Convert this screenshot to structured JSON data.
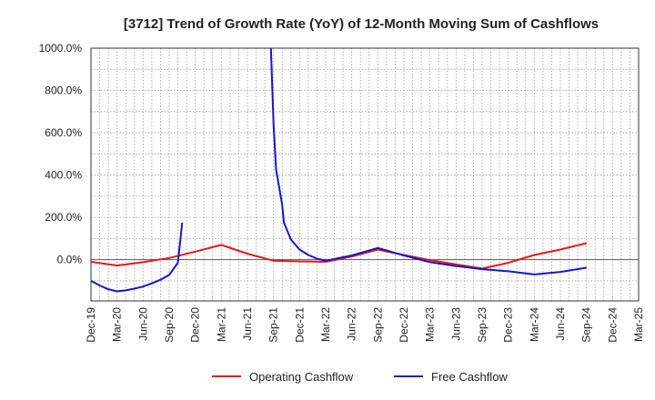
{
  "chart_data": {
    "type": "line",
    "title": "[3712]  Trend of Growth Rate (YoY) of 12-Month Moving Sum of Cashflows",
    "xlabel": "",
    "ylabel": "",
    "x_categories": [
      "Dec-19",
      "Mar-20",
      "Jun-20",
      "Sep-20",
      "Dec-20",
      "Mar-21",
      "Jun-21",
      "Sep-21",
      "Dec-21",
      "Mar-22",
      "Jun-22",
      "Sep-22",
      "Dec-22",
      "Mar-23",
      "Jun-23",
      "Sep-23",
      "Dec-23",
      "Mar-24",
      "Jun-24",
      "Sep-24",
      "Dec-24",
      "Mar-25"
    ],
    "y_ticks": [
      0,
      200,
      400,
      600,
      800,
      1000
    ],
    "y_tick_labels": [
      "0.0%",
      "200.0%",
      "400.0%",
      "600.0%",
      "800.0%",
      "1000.0%"
    ],
    "ylim": [
      -195,
      1000
    ],
    "grid": true,
    "legend_position": "bottom",
    "series": [
      {
        "name": "Operating Cashflow",
        "color": "#e8161c",
        "points": [
          [
            0,
            -10
          ],
          [
            1,
            -28
          ],
          [
            2,
            -12
          ],
          [
            3,
            8
          ],
          [
            4,
            38
          ],
          [
            5,
            70
          ],
          [
            6,
            28
          ],
          [
            7,
            -5
          ],
          [
            8,
            -8
          ],
          [
            9,
            -10
          ],
          [
            10,
            15
          ],
          [
            11,
            48
          ],
          [
            12,
            22
          ],
          [
            13,
            -2
          ],
          [
            14,
            -22
          ],
          [
            15,
            -42
          ],
          [
            16,
            -15
          ],
          [
            17,
            22
          ],
          [
            18,
            48
          ],
          [
            19,
            78
          ]
        ]
      },
      {
        "name": "Free Cashflow",
        "color": "#1515d0",
        "points": [
          [
            0,
            -100
          ],
          [
            0.333,
            -122
          ],
          [
            0.667,
            -140
          ],
          [
            1,
            -150
          ],
          [
            1.333,
            -145
          ],
          [
            1.667,
            -137
          ],
          [
            2,
            -127
          ],
          [
            2.333,
            -112
          ],
          [
            2.667,
            -95
          ],
          [
            3,
            -72
          ],
          [
            3.333,
            -15
          ],
          [
            3.5,
            175
          ],
          [
            6.9,
            1000
          ],
          [
            7,
            640
          ],
          [
            7.1,
            425
          ],
          [
            7.333,
            260
          ],
          [
            7.4,
            175
          ],
          [
            7.667,
            95
          ],
          [
            8,
            48
          ],
          [
            8.333,
            22
          ],
          [
            8.667,
            5
          ],
          [
            9,
            -5
          ],
          [
            10,
            20
          ],
          [
            11,
            55
          ],
          [
            12,
            20
          ],
          [
            13,
            -12
          ],
          [
            14,
            -30
          ],
          [
            15,
            -45
          ],
          [
            16,
            -55
          ],
          [
            17,
            -70
          ],
          [
            18,
            -58
          ],
          [
            19,
            -38
          ]
        ]
      }
    ]
  }
}
